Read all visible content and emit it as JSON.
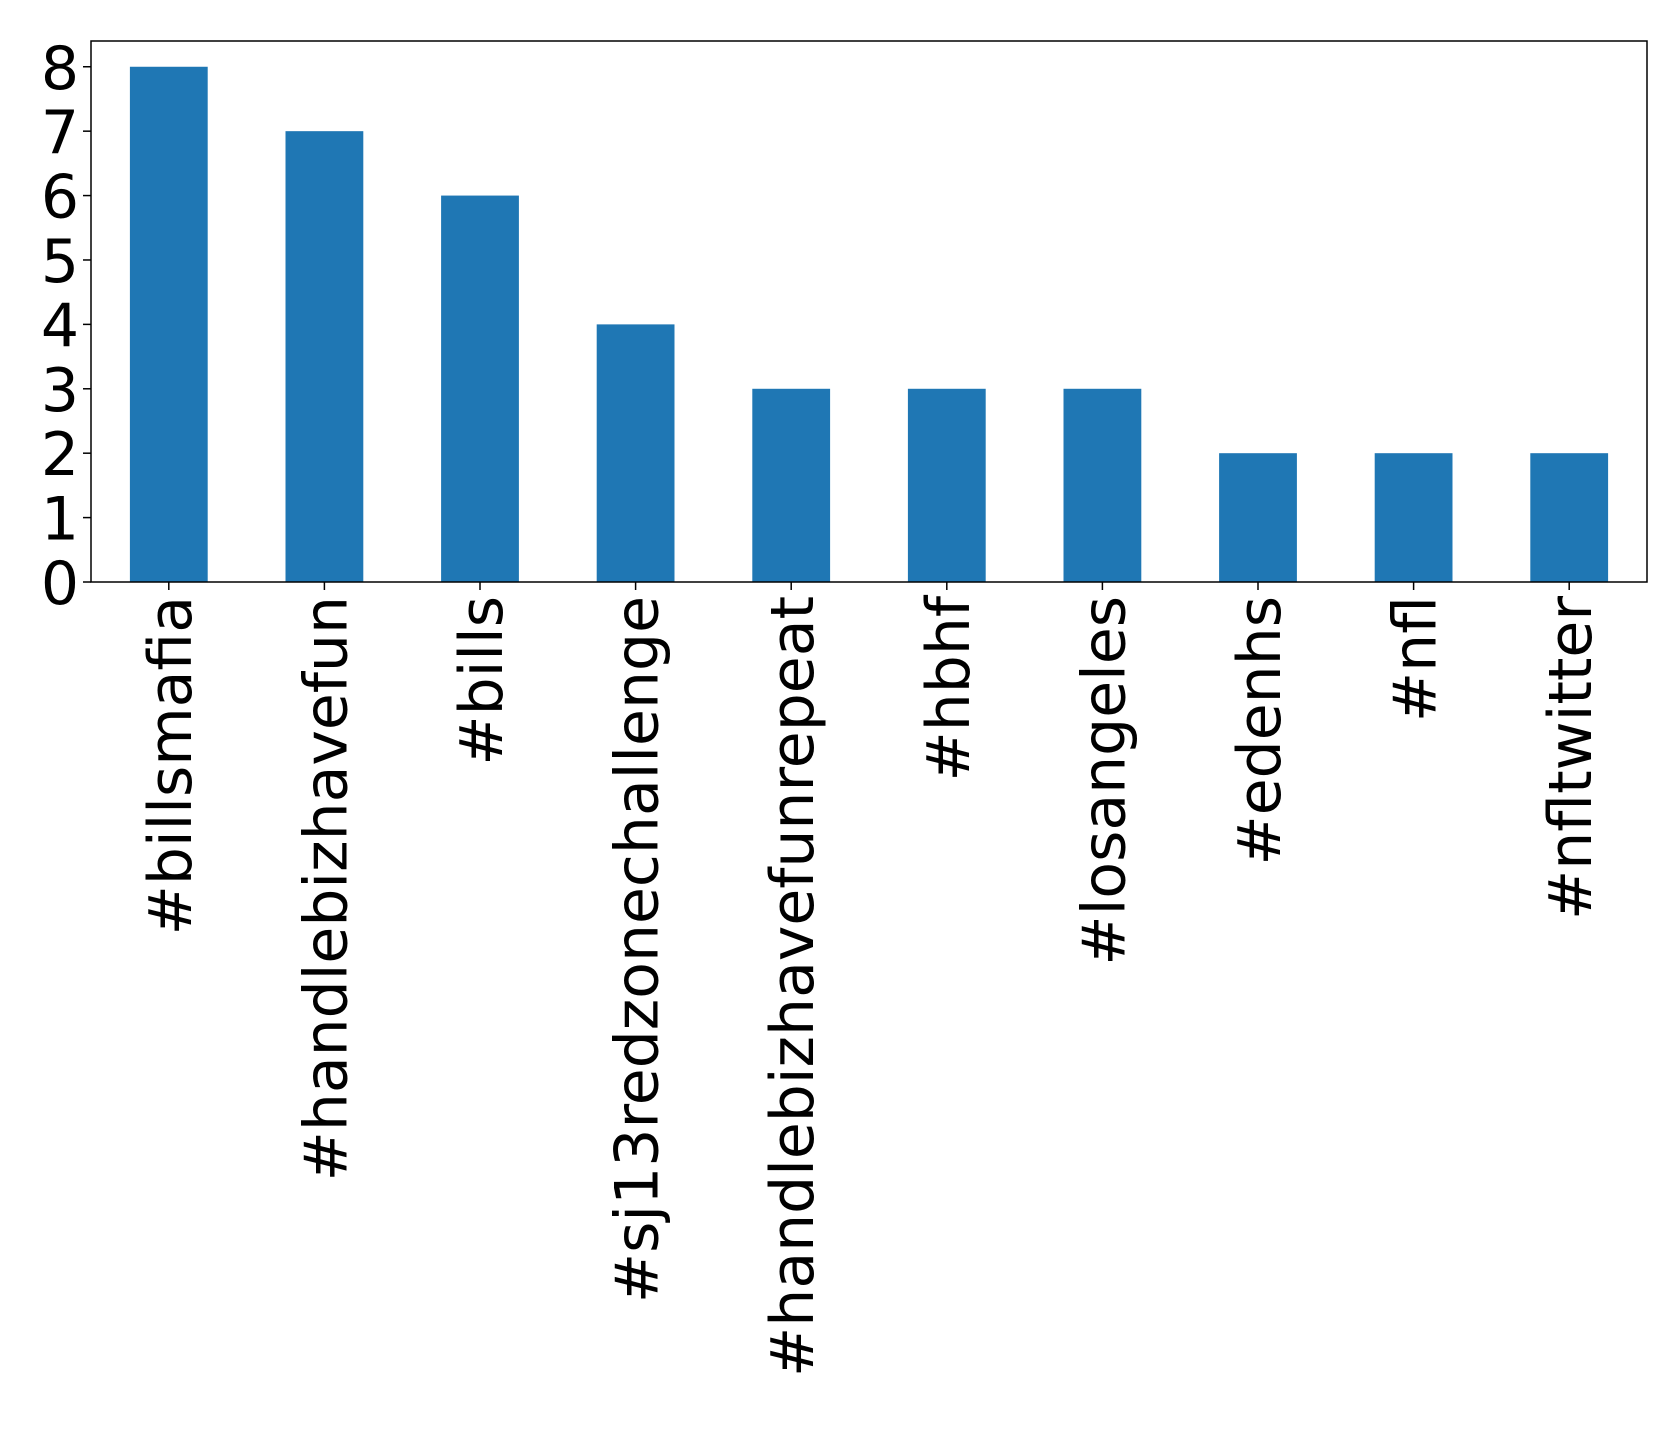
{
  "chart_data": {
    "type": "bar",
    "categories": [
      "#billsmafia",
      "#handlebizhavefun",
      "#bills",
      "#sj13redzonechallenge",
      "#handlebizhavefunrepeat",
      "#hbhf",
      "#losangeles",
      "#edenhs",
      "#nfl",
      "#nfltwitter"
    ],
    "values": [
      8,
      7,
      6,
      4,
      3,
      3,
      3,
      2,
      2,
      2
    ],
    "color": "#1f77b4",
    "ylim": [
      0,
      8.4
    ],
    "yticks": [
      0,
      1,
      2,
      3,
      4,
      5,
      6,
      7,
      8
    ],
    "grid": false
  }
}
